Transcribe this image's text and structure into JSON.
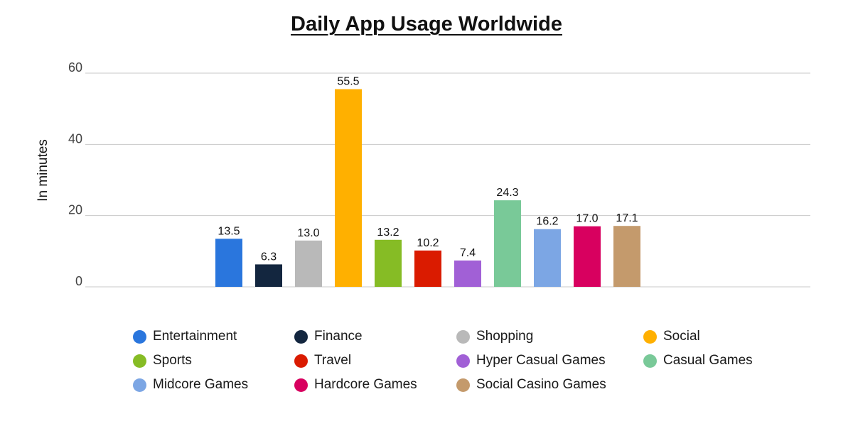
{
  "chart_data": {
    "type": "bar",
    "title": "Daily App Usage Worldwide",
    "xlabel": "",
    "ylabel": "In minutes",
    "ylim": [
      0,
      60
    ],
    "yticks": [
      0,
      20,
      40,
      60
    ],
    "grid": true,
    "legend_position": "bottom",
    "categories": [
      "Entertainment",
      "Finance",
      "Shopping",
      "Social",
      "Sports",
      "Travel",
      "Hyper Casual Games",
      "Casual Games",
      "Midcore Games",
      "Hardcore Games",
      "Social Casino Games"
    ],
    "values": [
      13.5,
      6.3,
      13.0,
      55.5,
      13.2,
      10.2,
      7.4,
      24.3,
      16.2,
      17.0,
      17.1
    ],
    "data_labels": [
      "13.5",
      "6.3",
      "13.0",
      "55.5",
      "13.2",
      "10.2",
      "7.4",
      "24.3",
      "16.2",
      "17.0",
      "17.1"
    ],
    "colors": [
      "#2a76dd",
      "#13263f",
      "#b9b9b9",
      "#ffb000",
      "#86bc25",
      "#da1b00",
      "#a160d6",
      "#79c998",
      "#7ca6e4",
      "#d8005f",
      "#c49a6c"
    ]
  }
}
